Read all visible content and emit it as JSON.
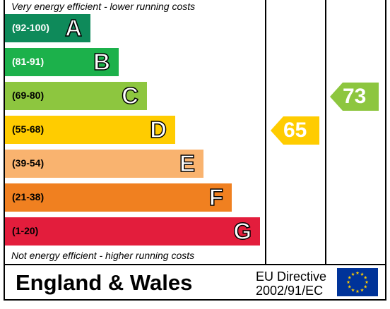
{
  "chart_data": {
    "type": "bar",
    "title": "",
    "top_caption": "Very energy efficient - lower running costs",
    "bottom_caption": "Not energy efficient - higher running costs",
    "bands": [
      {
        "range": "(92-100)",
        "letter": "A",
        "min": 92,
        "max": 100,
        "color": "#0e8a5a",
        "range_color": "#ffffff"
      },
      {
        "range": "(81-91)",
        "letter": "B",
        "min": 81,
        "max": 91,
        "color": "#1cb14b",
        "range_color": "#ffffff"
      },
      {
        "range": "(69-80)",
        "letter": "C",
        "min": 69,
        "max": 80,
        "color": "#8dc63f",
        "range_color": "#000000"
      },
      {
        "range": "(55-68)",
        "letter": "D",
        "min": 55,
        "max": 68,
        "color": "#ffcc00",
        "range_color": "#000000"
      },
      {
        "range": "(39-54)",
        "letter": "E",
        "min": 39,
        "max": 54,
        "color": "#f9b36f",
        "range_color": "#000000"
      },
      {
        "range": "(21-38)",
        "letter": "F",
        "min": 21,
        "max": 38,
        "color": "#f08020",
        "range_color": "#000000"
      },
      {
        "range": "(1-20)",
        "letter": "G",
        "min": 1,
        "max": 20,
        "color": "#e31d3c",
        "range_color": "#000000"
      }
    ],
    "series": [
      {
        "value": 65,
        "band": "D",
        "color": "#ffcc00"
      },
      {
        "value": 73,
        "band": "C",
        "color": "#8dc63f"
      }
    ]
  },
  "footer": {
    "region": "England & Wales",
    "directive_line1": "EU Directive",
    "directive_line2": "2002/91/EC",
    "flag_icon": "eu-flag-icon"
  }
}
